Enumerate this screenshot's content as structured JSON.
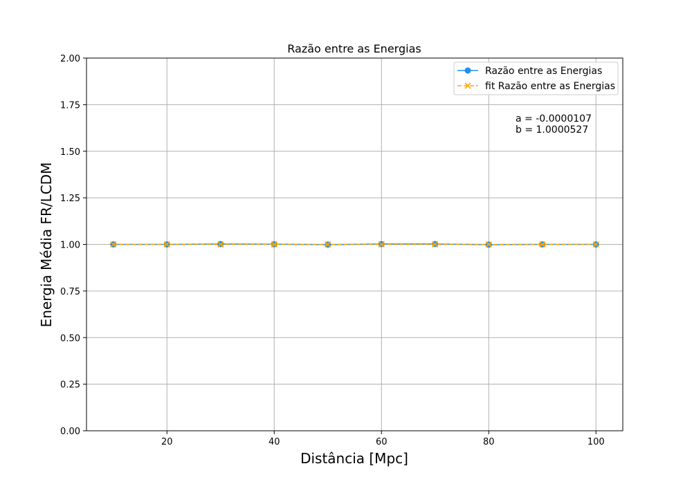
{
  "chart_data": {
    "type": "line",
    "title": "Razão entre as Energias",
    "xlabel": "Distância [Mpc]",
    "ylabel": "Energia Média  FR/LCDM",
    "xlim": [
      5,
      105
    ],
    "ylim": [
      0.0,
      2.0
    ],
    "xticks": [
      20,
      40,
      60,
      80,
      100
    ],
    "yticks": [
      0.0,
      0.25,
      0.5,
      0.75,
      1.0,
      1.25,
      1.5,
      1.75,
      2.0
    ],
    "ytick_labels": [
      "0.00",
      "0.25",
      "0.50",
      "0.75",
      "1.00",
      "1.25",
      "1.50",
      "1.75",
      "2.00"
    ],
    "grid": true,
    "legend_position": "top-right",
    "x": [
      10,
      20,
      30,
      40,
      50,
      60,
      70,
      80,
      90,
      100
    ],
    "series": [
      {
        "name": "Razão entre as Energias",
        "values": [
          1.0,
          1.0,
          1.002,
          1.001,
          0.999,
          1.002,
          1.002,
          0.999,
          1.0,
          1.0
        ],
        "color": "#1f8ff0",
        "marker": "circle",
        "linestyle": "solid"
      },
      {
        "name": "fit Razão entre as Energias",
        "values": [
          1.0,
          1.0,
          1.0,
          1.0,
          1.0,
          1.0,
          1.0,
          1.0,
          1.0,
          1.0
        ],
        "color": "#ffa500",
        "marker": "x",
        "linestyle": "dashed"
      }
    ],
    "annotations": [
      "a = -0.0000107",
      "b = 1.0000527"
    ]
  }
}
